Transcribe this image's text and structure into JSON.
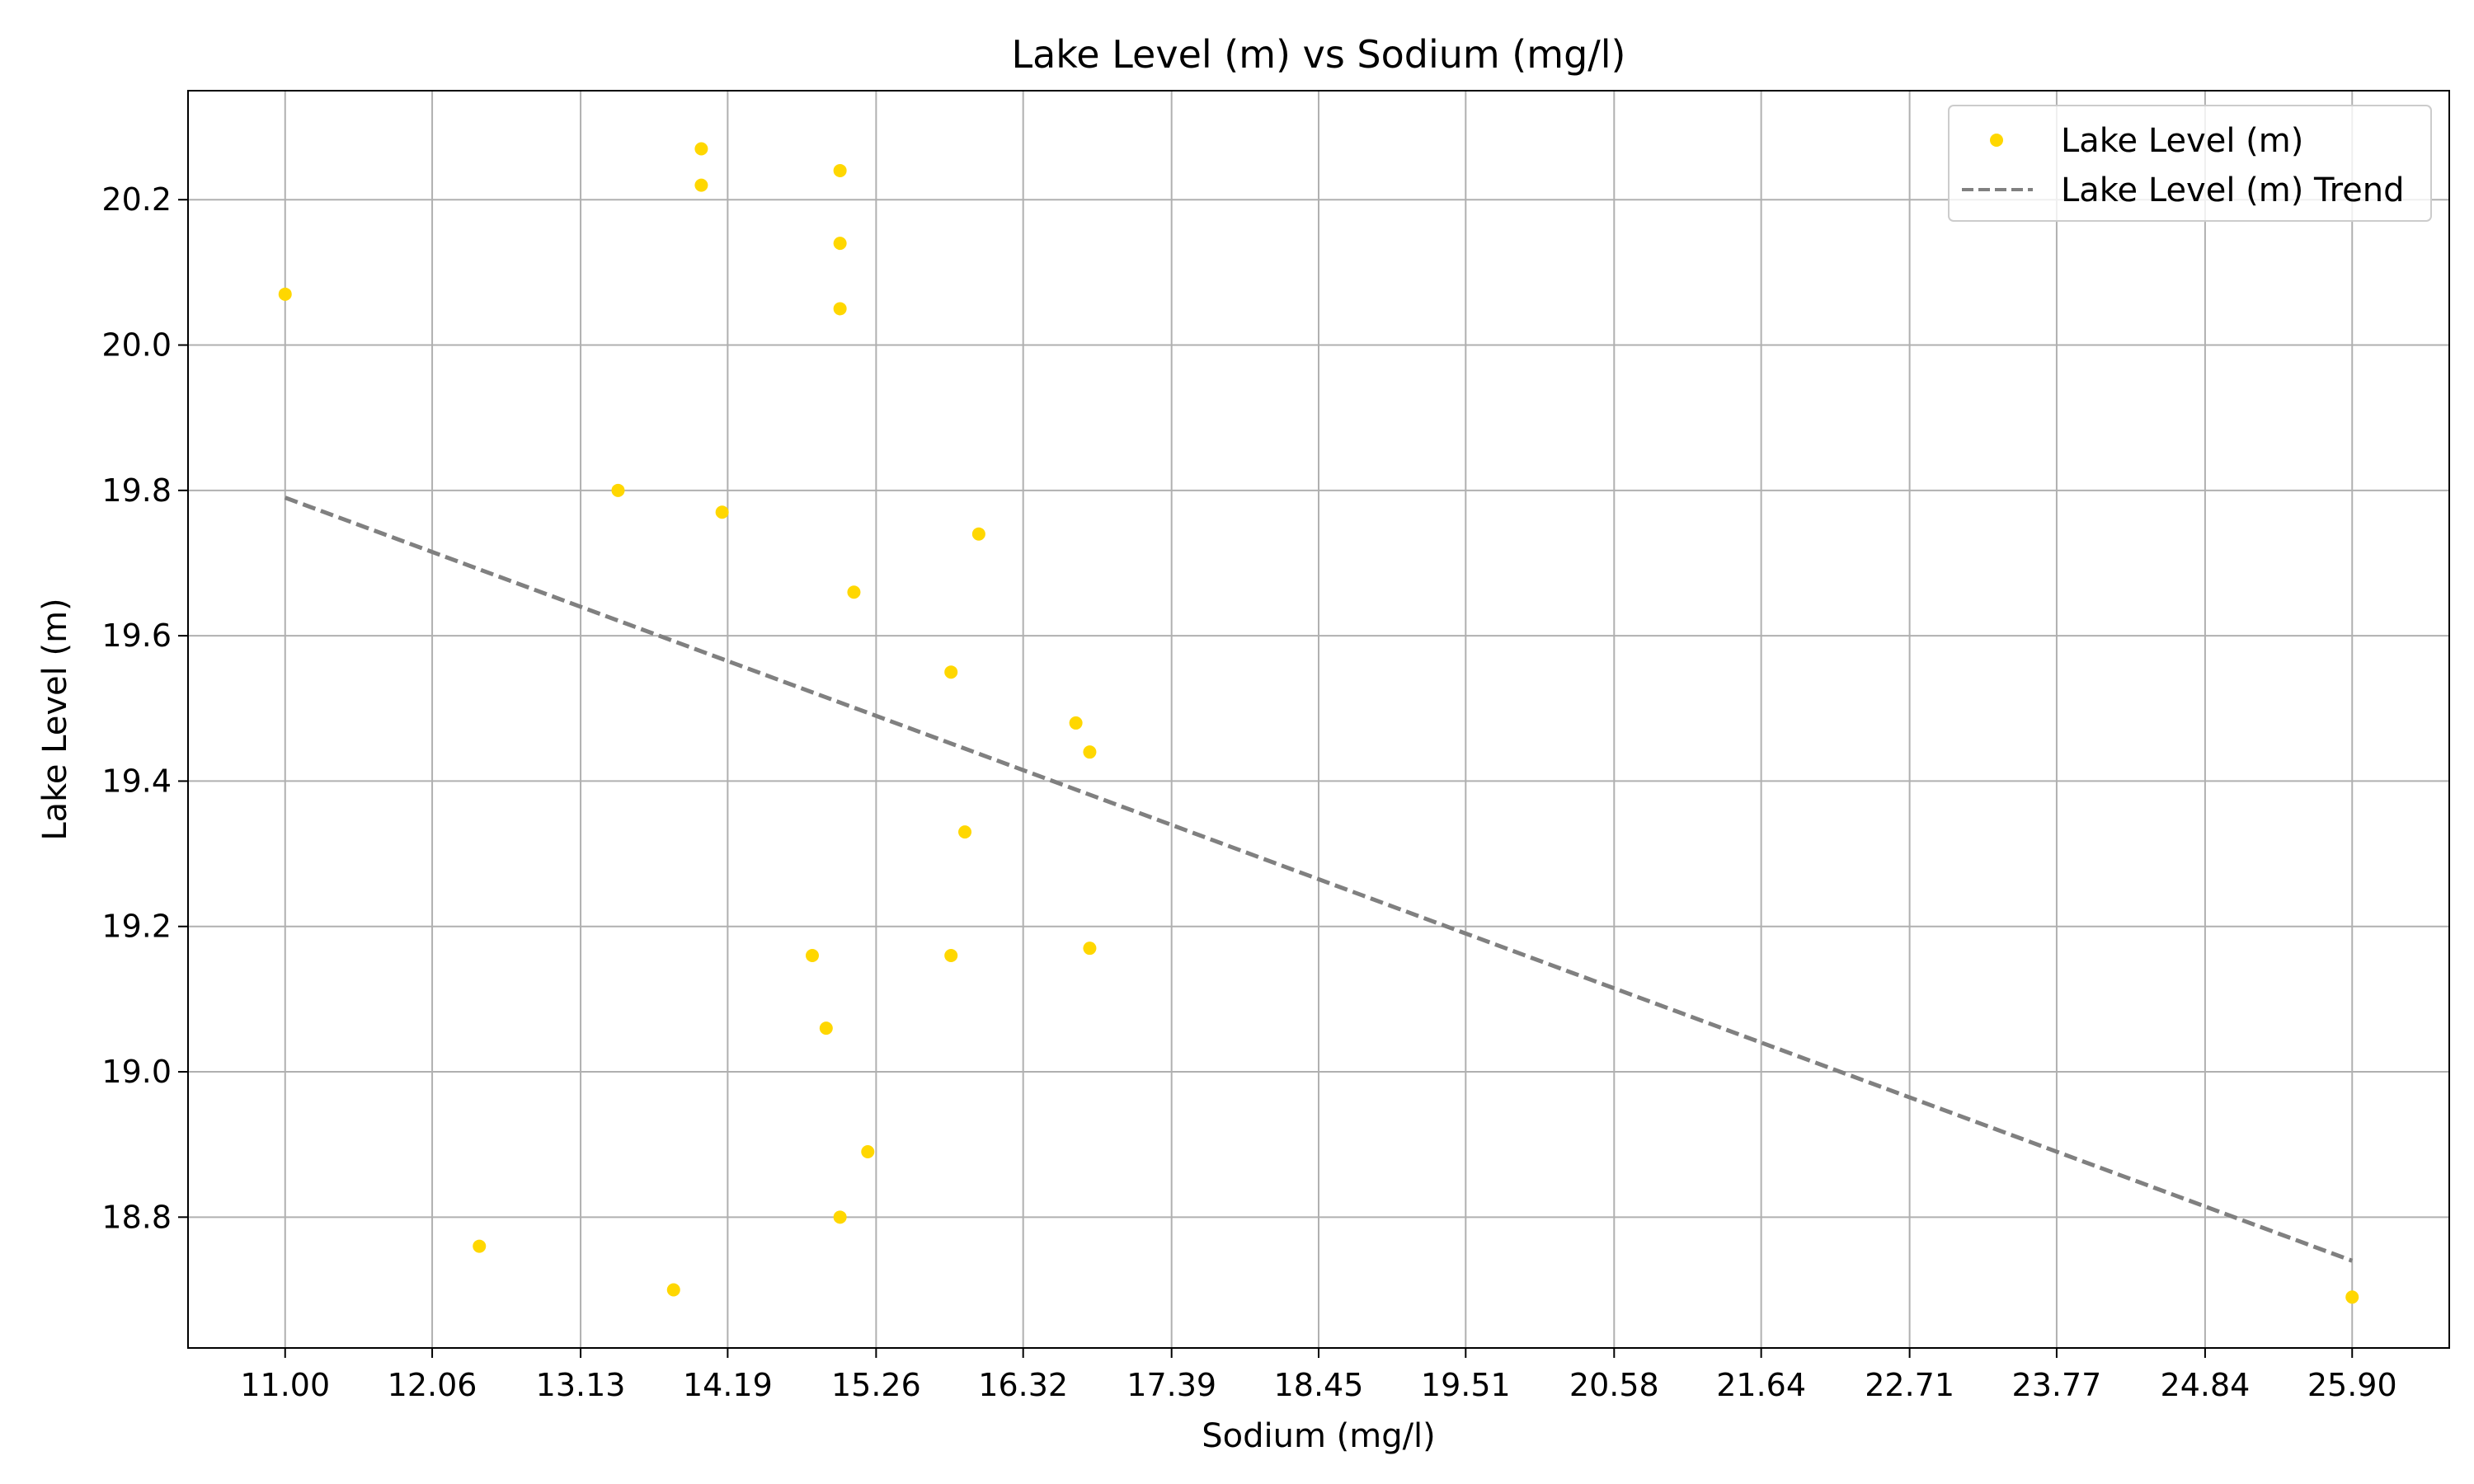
{
  "chart_data": {
    "type": "scatter",
    "title": "Lake Level (m) vs Sodium (mg/l)",
    "xlabel": "Sodium (mg/l)",
    "ylabel": "Lake Level (m)",
    "xlim": [
      10.3,
      26.6
    ],
    "ylim": [
      18.62,
      20.35
    ],
    "xticks": [
      "11.00",
      "12.06",
      "13.13",
      "14.19",
      "15.26",
      "16.32",
      "17.39",
      "18.45",
      "19.51",
      "20.58",
      "21.64",
      "22.71",
      "23.77",
      "24.84",
      "25.90"
    ],
    "yticks": [
      "18.8",
      "19.0",
      "19.2",
      "19.4",
      "19.6",
      "19.8",
      "20.0",
      "20.2"
    ],
    "grid": true,
    "legend_position": "top-right",
    "series": [
      {
        "name": "Lake Level (m)",
        "kind": "scatter",
        "color": "#FFD700",
        "points": [
          [
            11.0,
            20.07
          ],
          [
            12.4,
            18.76
          ],
          [
            13.4,
            19.8
          ],
          [
            13.8,
            18.7
          ],
          [
            14.0,
            20.27
          ],
          [
            14.0,
            20.22
          ],
          [
            14.15,
            19.77
          ],
          [
            15.0,
            20.24
          ],
          [
            15.0,
            20.14
          ],
          [
            15.0,
            20.05
          ],
          [
            15.1,
            19.66
          ],
          [
            14.8,
            19.16
          ],
          [
            14.9,
            19.06
          ],
          [
            15.2,
            18.89
          ],
          [
            15.0,
            18.8
          ],
          [
            15.8,
            19.55
          ],
          [
            16.0,
            19.74
          ],
          [
            15.9,
            19.33
          ],
          [
            15.8,
            19.16
          ],
          [
            16.7,
            19.48
          ],
          [
            16.8,
            19.44
          ],
          [
            16.8,
            19.17
          ],
          [
            25.9,
            18.69
          ]
        ]
      },
      {
        "name": "Lake Level (m) Trend",
        "kind": "line",
        "style": "dashed",
        "color": "#808080",
        "points": [
          [
            11.0,
            19.79
          ],
          [
            25.9,
            18.74
          ]
        ]
      }
    ]
  }
}
